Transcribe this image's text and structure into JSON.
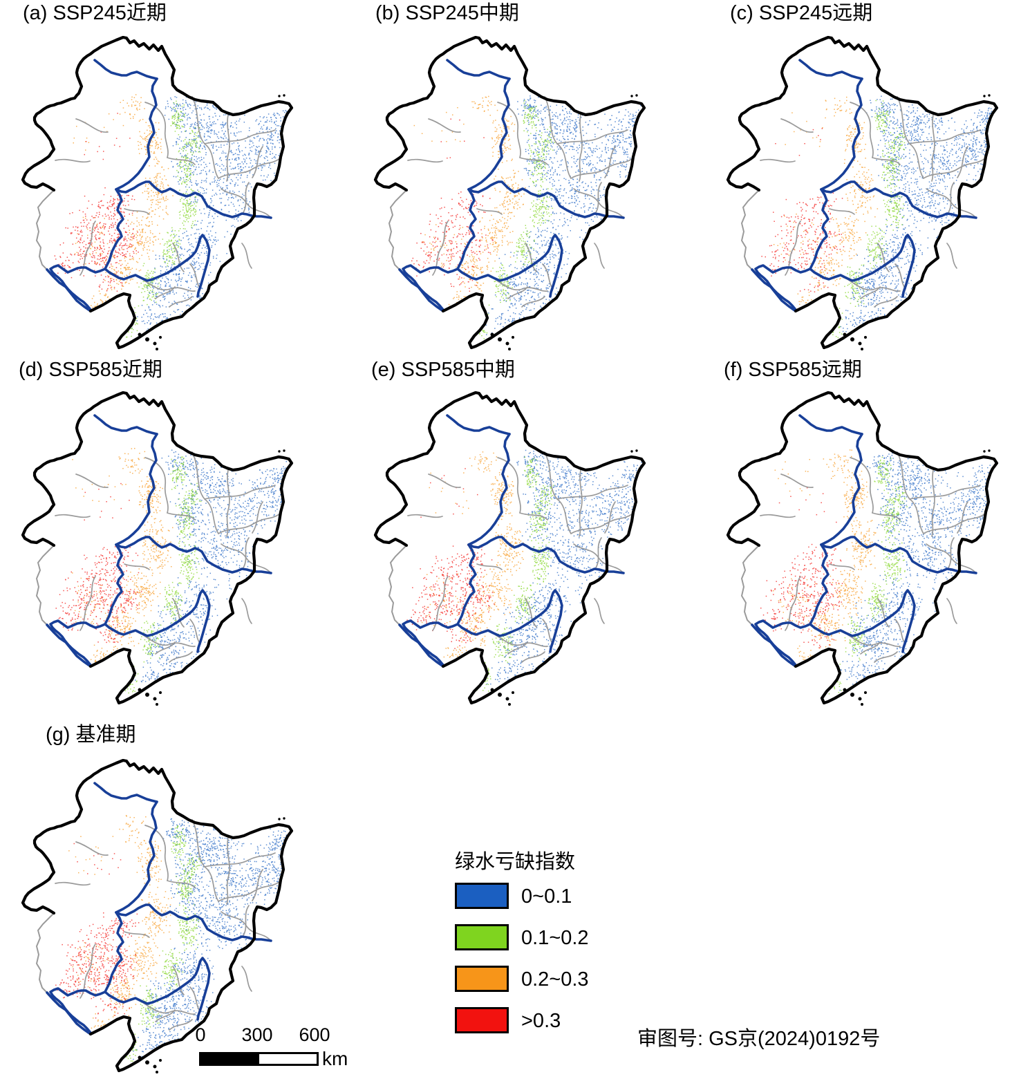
{
  "figure": {
    "panels": [
      {
        "id": "a",
        "label": "(a) SSP245近期"
      },
      {
        "id": "b",
        "label": "(b) SSP245中期"
      },
      {
        "id": "c",
        "label": "(c) SSP245远期"
      },
      {
        "id": "d",
        "label": "(d) SSP585近期"
      },
      {
        "id": "e",
        "label": "(e) SSP585中期"
      },
      {
        "id": "f",
        "label": "(f) SSP585远期"
      },
      {
        "id": "g",
        "label": "(g) 基准期"
      }
    ],
    "legend": {
      "title": "绿水亏缺指数",
      "items": [
        {
          "label": "0~0.1",
          "color": "#1b5fc1"
        },
        {
          "label": "0.1~0.2",
          "color": "#7fd41f"
        },
        {
          "label": "0.2~0.3",
          "color": "#f79519"
        },
        {
          "label": ">0.3",
          "color": "#f2120f"
        }
      ]
    },
    "scale_bar": {
      "ticks": [
        "0",
        "300",
        "600"
      ],
      "unit": "km"
    },
    "approval_number": "审图号: GS京(2024)0192号",
    "map_colors": {
      "region_fill": "#ffffff",
      "outline": "#000000",
      "province_border": "#183f98",
      "county_border": "#9a9a9a"
    }
  },
  "map_content": {
    "classes": [
      "0~0.1",
      "0.1~0.2",
      "0.2~0.3",
      ">0.3"
    ],
    "density": {
      "a": {
        "blue": 1.0,
        "green": 1.0,
        "orange": 1.0,
        "red": 1.0
      },
      "b": {
        "blue": 1.0,
        "green": 0.95,
        "orange": 0.9,
        "red": 0.55
      },
      "c": {
        "blue": 1.1,
        "green": 1.0,
        "orange": 0.8,
        "red": 0.6
      },
      "d": {
        "blue": 0.95,
        "green": 1.0,
        "orange": 1.1,
        "red": 0.9
      },
      "e": {
        "blue": 1.0,
        "green": 1.0,
        "orange": 1.05,
        "red": 0.9
      },
      "f": {
        "blue": 1.05,
        "green": 1.05,
        "orange": 1.1,
        "red": 0.8
      },
      "g": {
        "blue": 1.2,
        "green": 1.05,
        "orange": 1.0,
        "red": 1.05
      }
    }
  }
}
